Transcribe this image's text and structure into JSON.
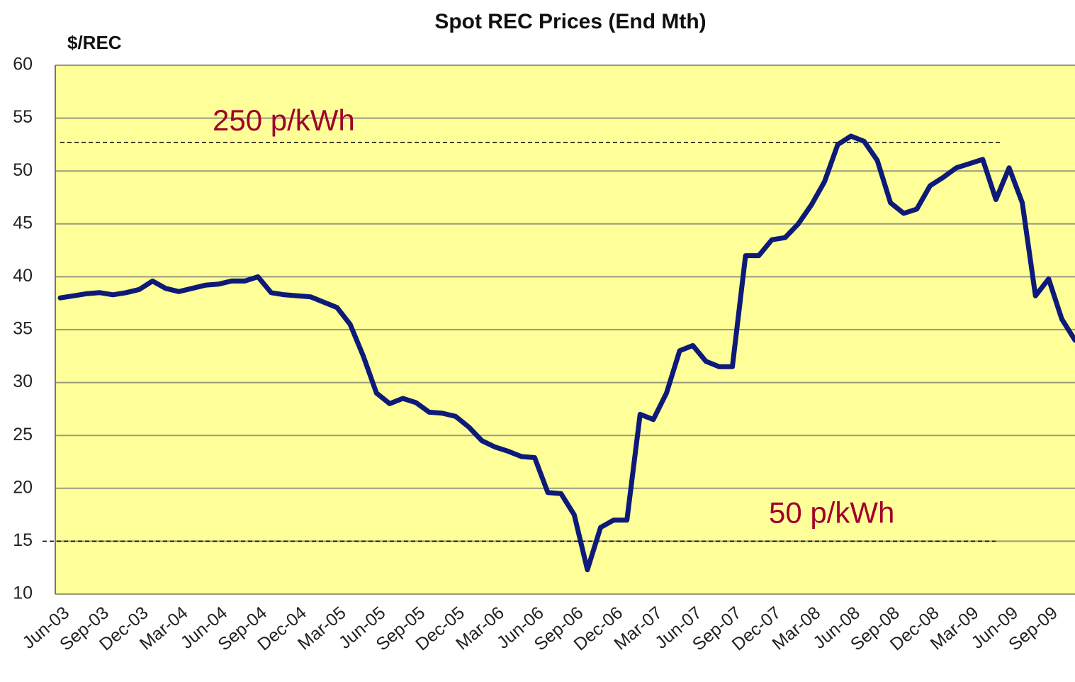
{
  "chart_data": {
    "type": "line",
    "title": "Spot REC Prices (End Mth)",
    "y_label": "$/REC",
    "categories": [
      "Jun-03",
      null,
      null,
      "Sep-03",
      null,
      null,
      "Dec-03",
      null,
      null,
      "Mar-04",
      null,
      null,
      "Jun-04",
      null,
      null,
      "Sep-04",
      null,
      null,
      "Dec-04",
      null,
      null,
      "Mar-05",
      null,
      null,
      "Jun-05",
      null,
      null,
      "Sep-05",
      null,
      null,
      "Dec-05",
      null,
      null,
      "Mar-06",
      null,
      null,
      "Jun-06",
      null,
      null,
      "Sep-06",
      null,
      null,
      "Dec-06",
      null,
      null,
      "Mar-07",
      null,
      null,
      "Jun-07",
      null,
      null,
      "Sep-07",
      null,
      null,
      "Dec-07",
      null,
      null,
      "Mar-08",
      null,
      null,
      "Jun-08",
      null,
      null,
      "Sep-08",
      null,
      null,
      "Dec-08",
      null,
      null,
      "Mar-09",
      null,
      null,
      "Jun-09",
      null,
      null,
      "Sep-09",
      null,
      null
    ],
    "series": [
      {
        "name": "Spot REC Price",
        "color": "#0d1a78",
        "values": [
          38,
          38.2,
          38.4,
          38.5,
          38.3,
          38.5,
          38.8,
          39.6,
          38.9,
          38.6,
          38.9,
          39.2,
          39.3,
          39.6,
          39.6,
          40,
          38.5,
          38.3,
          38.2,
          38.1,
          37.6,
          37.1,
          35.5,
          32.5,
          29,
          28,
          28.5,
          28.1,
          27.2,
          27.1,
          26.8,
          25.8,
          24.5,
          23.9,
          23.5,
          23,
          22.9,
          19.6,
          19.5,
          17.5,
          12.3,
          16.3,
          17,
          17,
          27,
          26.5,
          29,
          33,
          33.5,
          32,
          31.5,
          31.5,
          42,
          42,
          43.5,
          43.7,
          45,
          46.8,
          49,
          52.5,
          53.3,
          52.8,
          51,
          47,
          46,
          46.4,
          48.6,
          49.4,
          50.3,
          50.7,
          51.1,
          47.3,
          50.3,
          47,
          38.2,
          39.8,
          36,
          34
        ]
      }
    ],
    "reference_lines": [
      {
        "label": "250 p/kWh",
        "value": 52.7
      },
      {
        "label": "50 p/kWh",
        "value": 15
      }
    ],
    "ylim": [
      10,
      60
    ],
    "yticks": [
      10,
      15,
      20,
      25,
      30,
      35,
      40,
      45,
      50,
      55,
      60
    ],
    "grid": true,
    "legend": false
  }
}
